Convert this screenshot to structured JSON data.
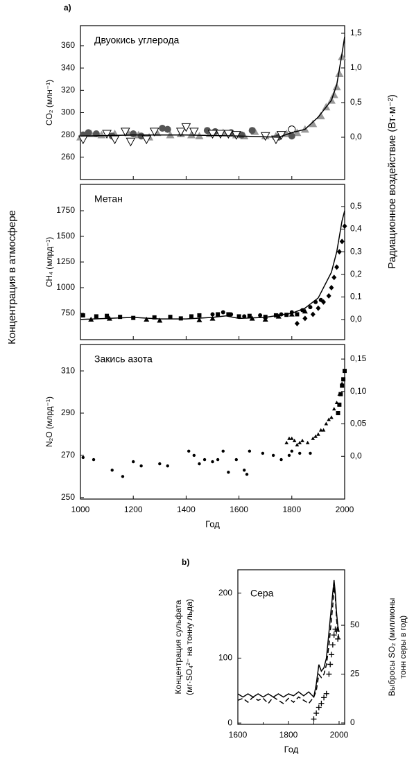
{
  "figure": {
    "label_a": "a)",
    "label_b": "b)",
    "ylabel": "Концентрация в атмосфере",
    "y2label": "Радиационное воздействие (Вт·м⁻²)"
  },
  "chart_data": [
    {
      "type": "scatter",
      "title": "Двуокись углерода",
      "ylabel": "CO₂ (млн⁻¹)",
      "xlim": [
        1000,
        2000
      ],
      "xticks": [
        1000,
        1200,
        1400,
        1600,
        1800,
        2000
      ],
      "show_xtick_labels": false,
      "ylim": [
        240,
        378
      ],
      "yticks": [
        260,
        280,
        300,
        320,
        340,
        360
      ],
      "y2lim": [
        -0.61,
        1.61
      ],
      "y2ticks": [
        {
          "value": 0,
          "label": "0,0"
        },
        {
          "value": 0.5,
          "label": "0,5"
        },
        {
          "value": 1,
          "label": "1,0"
        },
        {
          "value": 1.5,
          "label": "1,5"
        }
      ],
      "series": [
        {
          "marker": "triangle",
          "color": "#999999",
          "x": [
            1000,
            1040,
            1080,
            1130,
            1180,
            1220,
            1260,
            1290,
            1340,
            1380,
            1420,
            1450,
            1490,
            1540,
            1590,
            1620,
            1660,
            1700,
            1740,
            1780,
            1820,
            1850,
            1880,
            1910,
            1930,
            1950,
            1960,
            1970,
            1980,
            1990
          ],
          "values": [
            278,
            281,
            280,
            281,
            282,
            280,
            278,
            282,
            280,
            281,
            280,
            279,
            281,
            282,
            280,
            279,
            283,
            279,
            279,
            281,
            282,
            285,
            290,
            297,
            305,
            311,
            316,
            323,
            335,
            350
          ]
        },
        {
          "marker": "circle",
          "color": "#555555",
          "x": [
            1010,
            1030,
            1060,
            1120,
            1200,
            1230,
            1310,
            1330,
            1480,
            1510,
            1570,
            1610,
            1650,
            1750,
            1800
          ],
          "values": [
            280,
            282,
            281,
            279,
            281,
            279,
            286,
            285,
            284,
            283,
            282,
            280,
            284,
            278,
            279
          ]
        },
        {
          "marker": "triangle-down",
          "color": "#000000",
          "x": [
            1010,
            1100,
            1130,
            1170,
            1190,
            1250,
            1280,
            1380,
            1400,
            1430,
            1500,
            1530,
            1560,
            1590,
            1700,
            1740,
            1760
          ],
          "values": [
            276,
            281,
            276,
            283,
            274,
            276,
            283,
            283,
            287,
            283,
            281,
            281,
            281,
            280,
            279,
            276,
            280
          ]
        },
        {
          "marker": "circle-open",
          "color": "#000000",
          "x": [
            1800
          ],
          "values": [
            285
          ]
        },
        {
          "marker": "line",
          "color": "#000000",
          "x": [
            1000,
            1200,
            1400,
            1600,
            1750,
            1800,
            1850,
            1900,
            1950,
            1970,
            1990,
            2000
          ],
          "values": [
            279,
            280,
            280,
            279,
            278,
            282,
            285,
            296,
            311,
            325,
            353,
            368
          ]
        }
      ]
    },
    {
      "type": "scatter",
      "title": "Метан",
      "ylabel": "CH₄ (млрд⁻¹)",
      "xlim": [
        1000,
        2000
      ],
      "xticks": [
        1000,
        1200,
        1400,
        1600,
        1800,
        2000
      ],
      "show_xtick_labels": false,
      "ylim": [
        493,
        2007
      ],
      "yticks": [
        750,
        1000,
        1250,
        1500,
        1750
      ],
      "y2lim": [
        -0.089,
        0.598
      ],
      "y2ticks": [
        {
          "value": 0,
          "label": "0,0"
        },
        {
          "value": 0.1,
          "label": "0,1"
        },
        {
          "value": 0.2,
          "label": "0,2"
        },
        {
          "value": 0.3,
          "label": "0,3"
        },
        {
          "value": 0.4,
          "label": "0,4"
        },
        {
          "value": 0.5,
          "label": "0,5"
        }
      ],
      "series": [
        {
          "marker": "square",
          "color": "#000000",
          "x": [
            1010,
            1060,
            1100,
            1150,
            1200,
            1280,
            1340,
            1380,
            1420,
            1450,
            1520,
            1560,
            1600,
            1640,
            1700,
            1740,
            1780,
            1820
          ],
          "values": [
            730,
            720,
            725,
            715,
            705,
            710,
            715,
            700,
            720,
            730,
            740,
            740,
            720,
            725,
            715,
            730,
            735,
            740
          ]
        },
        {
          "marker": "triangle",
          "color": "#000000",
          "x": [
            1040,
            1110,
            1250,
            1300,
            1450,
            1500,
            1650,
            1700,
            1750,
            1800,
            1850
          ],
          "values": [
            690,
            700,
            690,
            680,
            685,
            700,
            700,
            690,
            720,
            740,
            770
          ]
        },
        {
          "marker": "circle",
          "color": "#000000",
          "x": [
            1500,
            1540,
            1570,
            1620,
            1680,
            1760,
            1800,
            1840,
            1870,
            1890,
            1910
          ],
          "values": [
            740,
            760,
            740,
            720,
            730,
            740,
            760,
            780,
            810,
            860,
            880
          ]
        },
        {
          "marker": "diamond",
          "color": "#000000",
          "x": [
            1820,
            1850,
            1880,
            1900,
            1920,
            1940,
            1950,
            1960,
            1970,
            1980,
            1990,
            2000
          ],
          "values": [
            650,
            700,
            740,
            800,
            860,
            920,
            1000,
            1100,
            1200,
            1350,
            1450,
            1600
          ]
        },
        {
          "marker": "line",
          "color": "#000000",
          "x": [
            1000,
            1100,
            1200,
            1300,
            1400,
            1500,
            1550,
            1600,
            1700,
            1750,
            1800,
            1850,
            1900,
            1950,
            1970,
            1990,
            2000
          ],
          "values": [
            690,
            700,
            710,
            695,
            695,
            710,
            725,
            700,
            710,
            730,
            750,
            800,
            900,
            1150,
            1350,
            1650,
            1750
          ]
        }
      ]
    },
    {
      "type": "scatter",
      "title": "Закись азота",
      "ylabel": "N₂O (млрд⁻¹)",
      "xlabel": "Год",
      "xlim": [
        1000,
        2000
      ],
      "xticks": [
        1000,
        1200,
        1400,
        1600,
        1800,
        2000
      ],
      "show_xtick_labels": true,
      "ylim": [
        249.3,
        322.5
      ],
      "yticks": [
        250,
        270,
        290,
        310
      ],
      "y2lim": [
        -0.066,
        0.1725
      ],
      "y2ticks": [
        {
          "value": 0,
          "label": "0,0"
        },
        {
          "value": 0.05,
          "label": "0,05"
        },
        {
          "value": 0.1,
          "label": "0,10"
        },
        {
          "value": 0.15,
          "label": "0,15"
        }
      ],
      "series": [
        {
          "marker": "dot",
          "color": "#000000",
          "x": [
            1010,
            1050,
            1120,
            1160,
            1200,
            1230,
            1300,
            1330,
            1410,
            1430,
            1450,
            1470,
            1500,
            1520,
            1540,
            1560,
            1590,
            1620,
            1630,
            1640,
            1690,
            1730,
            1760,
            1790,
            1800,
            1830,
            1870
          ],
          "values": [
            269,
            268,
            263,
            260,
            267,
            265,
            266,
            265,
            272,
            270,
            266,
            268,
            267,
            268,
            272,
            262,
            268,
            263,
            261,
            272,
            271,
            270,
            268,
            270,
            272,
            271,
            271
          ]
        },
        {
          "marker": "triangle-small",
          "color": "#000000",
          "x": [
            1780,
            1790,
            1800,
            1810,
            1820,
            1830,
            1840,
            1860,
            1880,
            1890,
            1900,
            1910,
            1920,
            1930,
            1940,
            1950,
            1960,
            1970,
            1980,
            1990,
            2000
          ],
          "values": [
            276,
            278,
            278,
            277,
            275,
            276,
            277,
            276,
            278,
            279,
            280,
            282,
            282,
            285,
            287,
            288,
            292,
            295,
            299,
            304,
            310
          ]
        },
        {
          "marker": "square",
          "color": "#000000",
          "x": [
            1975,
            1980,
            1985,
            1990,
            1995,
            2000
          ],
          "values": [
            290,
            294,
            299,
            303,
            306,
            310
          ]
        }
      ]
    },
    {
      "type": "line",
      "title": "Сера",
      "ylabel": [
        "Концентрация сульфата",
        "(мг·SO₄²⁻ на тонну льда)"
      ],
      "y2label": [
        "Выбросы SO₂ (миллионы",
        "тонн серы в год)"
      ],
      "xlabel": "Год",
      "xlim": [
        1600,
        2022
      ],
      "xticks": [
        1600,
        1800,
        2000
      ],
      "xminor": [
        1700,
        1900
      ],
      "show_xtick_labels": true,
      "ylim": [
        -2,
        236
      ],
      "yticks": [
        0,
        100,
        200
      ],
      "y2lim": [
        -0.7,
        78.4
      ],
      "y2ticks": [
        0,
        25,
        50
      ],
      "series": [
        {
          "marker": "line",
          "color": "#000000",
          "x": [
            1600,
            1620,
            1640,
            1660,
            1680,
            1700,
            1720,
            1740,
            1760,
            1780,
            1800,
            1820,
            1840,
            1860,
            1880,
            1900,
            1910,
            1920,
            1930,
            1940,
            1950,
            1960,
            1970,
            1975,
            1980,
            1985,
            1990,
            1995,
            2000
          ],
          "values": [
            45,
            40,
            45,
            40,
            45,
            40,
            45,
            40,
            45,
            40,
            45,
            42,
            48,
            42,
            48,
            40,
            60,
            90,
            80,
            85,
            100,
            140,
            180,
            200,
            220,
            200,
            170,
            150,
            140
          ]
        },
        {
          "marker": "dashed",
          "color": "#000000",
          "x": [
            1600,
            1620,
            1640,
            1660,
            1680,
            1700,
            1720,
            1740,
            1760,
            1780,
            1800,
            1820,
            1840,
            1860,
            1880,
            1900,
            1910,
            1920,
            1930,
            1940,
            1950,
            1960,
            1970,
            1975,
            1980,
            1985,
            1990,
            1995,
            2000
          ],
          "values": [
            35,
            38,
            32,
            40,
            35,
            38,
            30,
            40,
            35,
            30,
            38,
            32,
            40,
            35,
            30,
            40,
            50,
            75,
            70,
            75,
            90,
            120,
            160,
            180,
            210,
            195,
            160,
            140,
            130
          ]
        },
        {
          "marker": "plus",
          "color": "#000000",
          "axis": "y2",
          "x": [
            1900,
            1910,
            1920,
            1930,
            1940,
            1950,
            1960,
            1965,
            1970,
            1975,
            1980,
            1985,
            1990,
            1995
          ],
          "values": [
            2,
            5,
            8,
            10,
            13,
            15,
            25,
            30,
            35,
            40,
            45,
            48,
            47,
            43
          ]
        }
      ]
    }
  ]
}
